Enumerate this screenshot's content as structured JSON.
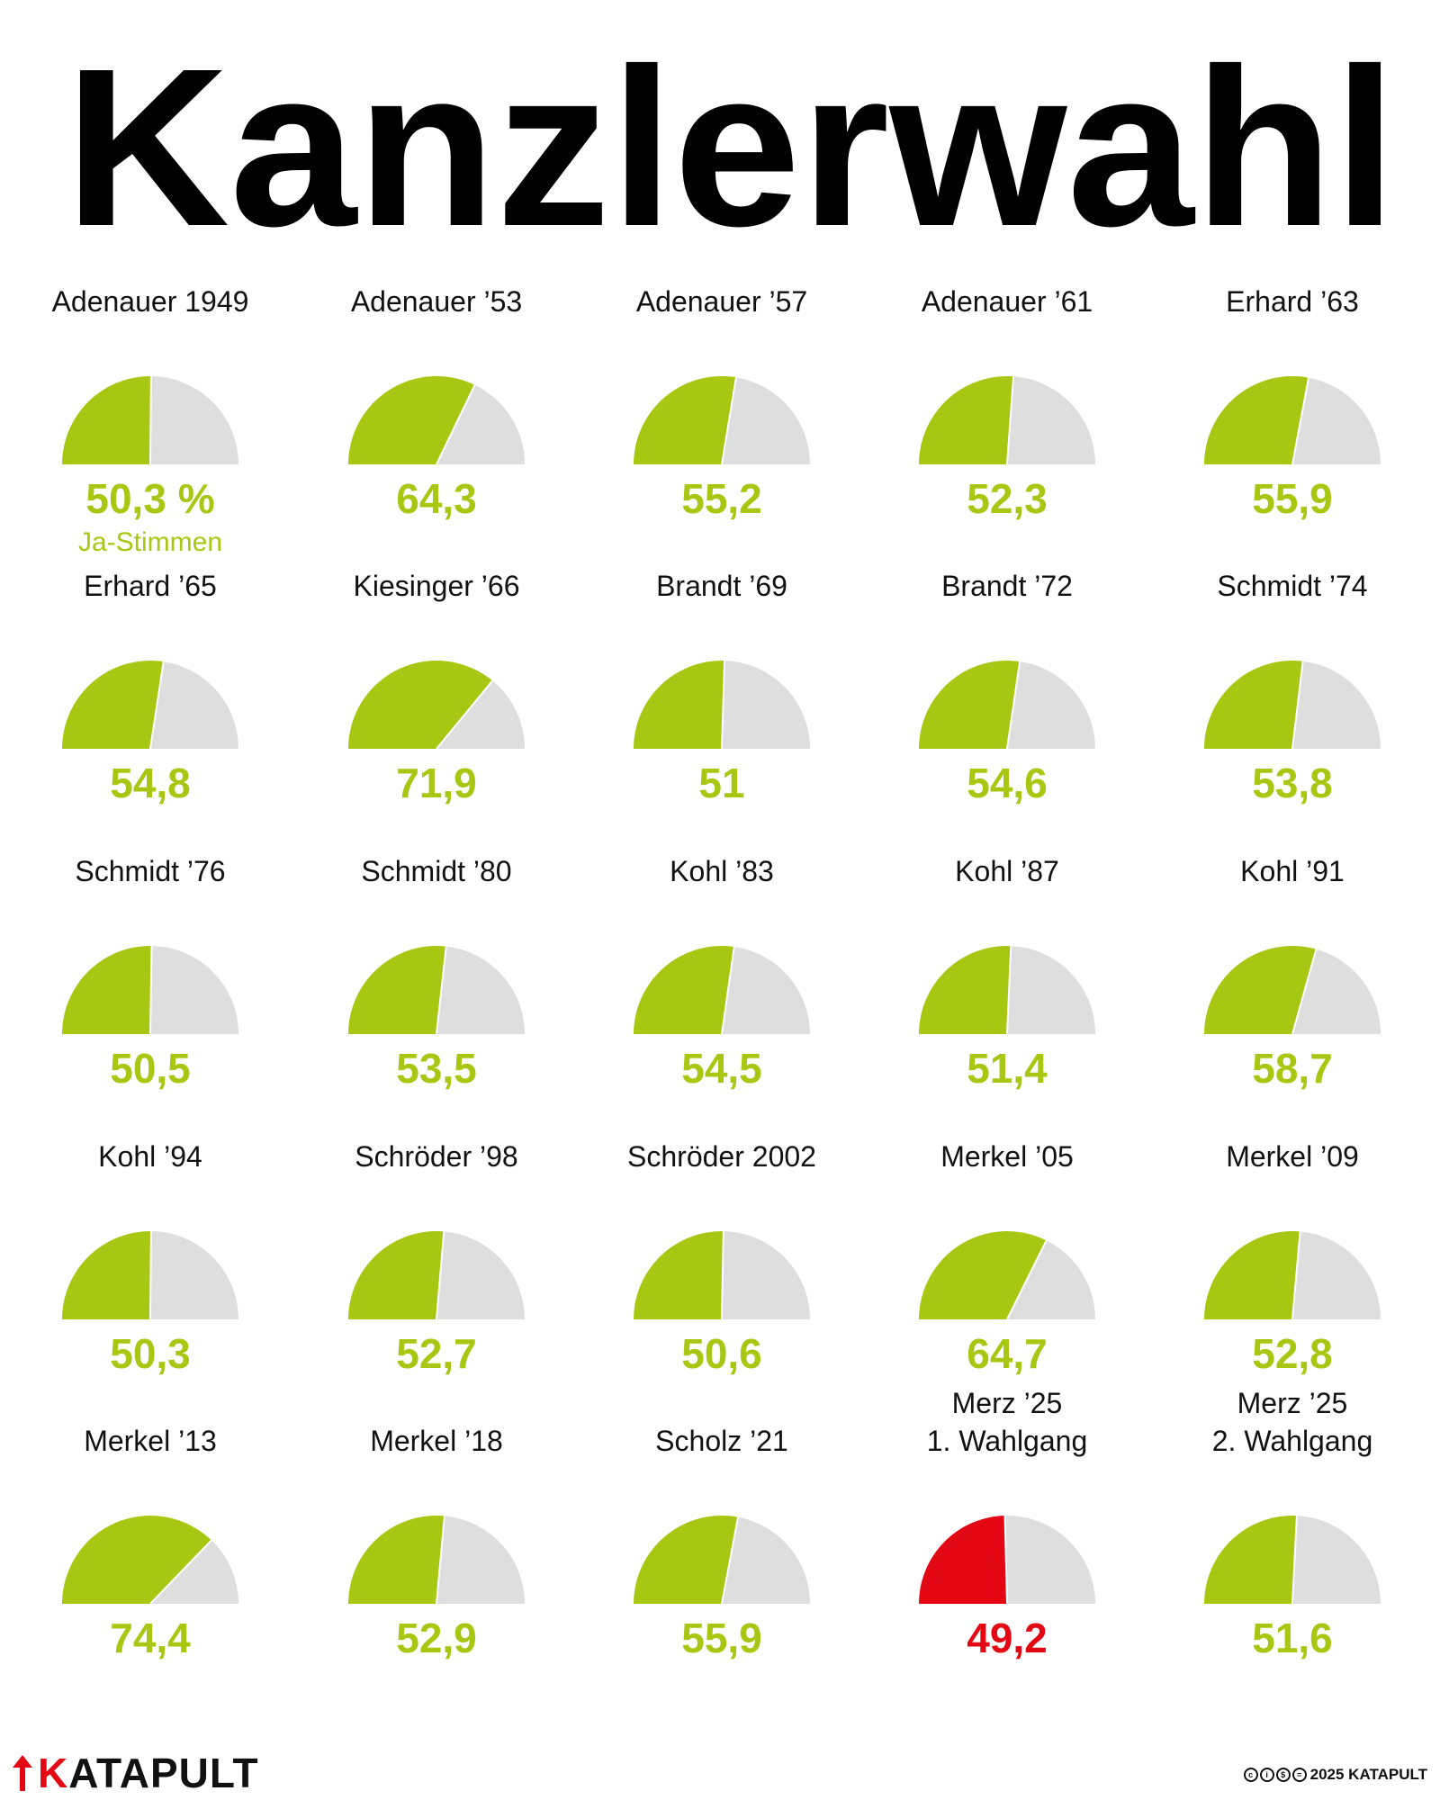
{
  "title": "Kanzlerwahl",
  "colors": {
    "yes": "#a8c712",
    "yes_failed": "#e30613",
    "rest": "#dedede",
    "text": "#111111"
  },
  "legend": {
    "first_value_suffix": " %",
    "unit_label": "Ja-Stimmen"
  },
  "chart_data": {
    "type": "pie",
    "title": "Kanzlerwahl",
    "unit": "% Ja-Stimmen",
    "series_kind": "half-donut gauge (0–100 %)",
    "items": [
      {
        "label": "Adenauer 1949",
        "value": 50.3,
        "display": "50,3 %",
        "status": "passed"
      },
      {
        "label": "Adenauer ’53",
        "value": 64.3,
        "display": "64,3",
        "status": "passed"
      },
      {
        "label": "Adenauer ’57",
        "value": 55.2,
        "display": "55,2",
        "status": "passed"
      },
      {
        "label": "Adenauer ’61",
        "value": 52.3,
        "display": "52,3",
        "status": "passed"
      },
      {
        "label": "Erhard ’63",
        "value": 55.9,
        "display": "55,9",
        "status": "passed"
      },
      {
        "label": "Erhard ’65",
        "value": 54.8,
        "display": "54,8",
        "status": "passed"
      },
      {
        "label": "Kiesinger ’66",
        "value": 71.9,
        "display": "71,9",
        "status": "passed"
      },
      {
        "label": "Brandt ’69",
        "value": 51,
        "display": "51",
        "status": "passed"
      },
      {
        "label": "Brandt ’72",
        "value": 54.6,
        "display": "54,6",
        "status": "passed"
      },
      {
        "label": "Schmidt ’74",
        "value": 53.8,
        "display": "53,8",
        "status": "passed"
      },
      {
        "label": "Schmidt ’76",
        "value": 50.5,
        "display": "50,5",
        "status": "passed"
      },
      {
        "label": "Schmidt ’80",
        "value": 53.5,
        "display": "53,5",
        "status": "passed"
      },
      {
        "label": "Kohl ’83",
        "value": 54.5,
        "display": "54,5",
        "status": "passed"
      },
      {
        "label": "Kohl ’87",
        "value": 51.4,
        "display": "51,4",
        "status": "passed"
      },
      {
        "label": "Kohl ’91",
        "value": 58.7,
        "display": "58,7",
        "status": "passed"
      },
      {
        "label": "Kohl ’94",
        "value": 50.3,
        "display": "50,3",
        "status": "passed"
      },
      {
        "label": "Schröder ’98",
        "value": 52.7,
        "display": "52,7",
        "status": "passed"
      },
      {
        "label": "Schröder 2002",
        "value": 50.6,
        "display": "50,6",
        "status": "passed"
      },
      {
        "label": "Merkel ’05",
        "value": 64.7,
        "display": "64,7",
        "status": "passed"
      },
      {
        "label": "Merkel ’09",
        "value": 52.8,
        "display": "52,8",
        "status": "passed"
      },
      {
        "label": "Merkel ’13",
        "value": 74.4,
        "display": "74,4",
        "status": "passed"
      },
      {
        "label": "Merkel ’18",
        "value": 52.9,
        "display": "52,9",
        "status": "passed"
      },
      {
        "label": "Scholz ’21",
        "value": 55.9,
        "display": "55,9",
        "status": "passed"
      },
      {
        "label": "Merz ’25\n1. Wahlgang",
        "value": 49.2,
        "display": "49,2",
        "status": "failed"
      },
      {
        "label": "Merz ’25\n2. Wahlgang",
        "value": 51.6,
        "display": "51,6",
        "status": "passed"
      }
    ]
  },
  "footer": {
    "brand_first_letter": "K",
    "brand_rest": "ATAPULT",
    "license_text": "2025 KATAPULT",
    "license_icons": [
      "cc-icon",
      "by-icon",
      "nc-icon",
      "nd-icon"
    ]
  }
}
